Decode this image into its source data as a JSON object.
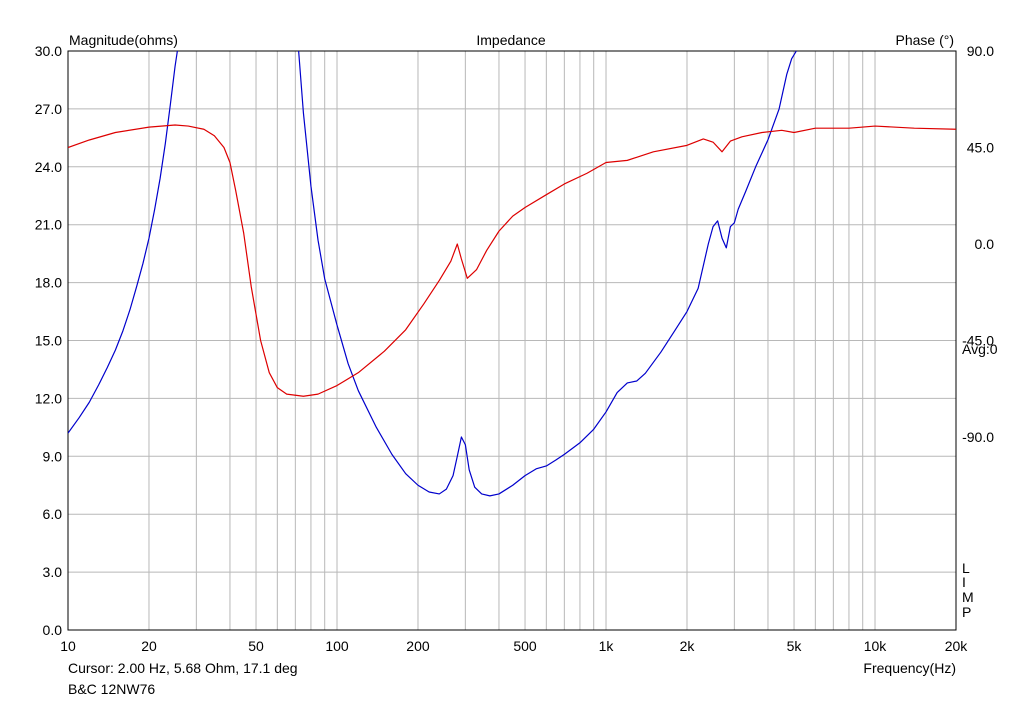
{
  "chart_data": {
    "type": "line",
    "title": "Impedance",
    "left_axis_label": "Magnitude(ohms)",
    "right_axis_label": "Phase (°)",
    "xlabel": "Frequency(Hz)",
    "x_scale": "log",
    "xlim": [
      10,
      20000
    ],
    "ylim": [
      0,
      30
    ],
    "y2lim": [
      -180,
      90
    ],
    "x_ticks": [
      {
        "value": 10,
        "label": "10"
      },
      {
        "value": 20,
        "label": "20"
      },
      {
        "value": 50,
        "label": "50"
      },
      {
        "value": 100,
        "label": "100"
      },
      {
        "value": 200,
        "label": "200"
      },
      {
        "value": 500,
        "label": "500"
      },
      {
        "value": 1000,
        "label": "1k"
      },
      {
        "value": 2000,
        "label": "2k"
      },
      {
        "value": 5000,
        "label": "5k"
      },
      {
        "value": 10000,
        "label": "10k"
      },
      {
        "value": 20000,
        "label": "20k"
      }
    ],
    "y_ticks": [
      {
        "value": 0,
        "label": "0.0"
      },
      {
        "value": 3,
        "label": "3.0"
      },
      {
        "value": 6,
        "label": "6.0"
      },
      {
        "value": 9,
        "label": "9.0"
      },
      {
        "value": 12,
        "label": "12.0"
      },
      {
        "value": 15,
        "label": "15.0"
      },
      {
        "value": 18,
        "label": "18.0"
      },
      {
        "value": 21,
        "label": "21.0"
      },
      {
        "value": 24,
        "label": "24.0"
      },
      {
        "value": 27,
        "label": "27.0"
      },
      {
        "value": 30,
        "label": "30.0"
      }
    ],
    "y2_ticks": [
      {
        "value": 90,
        "label": "90.0"
      },
      {
        "value": 45,
        "label": "45.0"
      },
      {
        "value": 0,
        "label": " 0.0"
      },
      {
        "value": -45,
        "label": "-45.0"
      },
      {
        "value": -90,
        "label": "-90.0"
      }
    ],
    "avg_label": "Avg:0",
    "side_letters": [
      "L",
      "I",
      "M",
      "P"
    ],
    "cursor_text": "Cursor: 2.00 Hz, 5.68 Ohm, 17.1 deg",
    "product": "B&C 12NW76",
    "grid": true,
    "series": [
      {
        "axis": "left",
        "color": "#0000cc",
        "points": [
          [
            10,
            10.2
          ],
          [
            11,
            11.0
          ],
          [
            12,
            11.8
          ],
          [
            13,
            12.7
          ],
          [
            14,
            13.6
          ],
          [
            15,
            14.5
          ],
          [
            16,
            15.5
          ],
          [
            17,
            16.6
          ],
          [
            18,
            17.8
          ],
          [
            19,
            19.0
          ],
          [
            20,
            20.3
          ],
          [
            21,
            21.8
          ],
          [
            22,
            23.4
          ],
          [
            23,
            25.2
          ],
          [
            24,
            27.2
          ],
          [
            25,
            29.2
          ],
          [
            25.5,
            30.0
          ],
          [
            null,
            null
          ],
          [
            72,
            30.0
          ],
          [
            75,
            26.8
          ],
          [
            80,
            23.0
          ],
          [
            85,
            20.2
          ],
          [
            90,
            18.2
          ],
          [
            100,
            15.8
          ],
          [
            110,
            13.8
          ],
          [
            120,
            12.4
          ],
          [
            140,
            10.5
          ],
          [
            160,
            9.1
          ],
          [
            180,
            8.1
          ],
          [
            200,
            7.5
          ],
          [
            220,
            7.15
          ],
          [
            240,
            7.05
          ],
          [
            255,
            7.3
          ],
          [
            270,
            8.0
          ],
          [
            280,
            9.0
          ],
          [
            290,
            10.0
          ],
          [
            300,
            9.6
          ],
          [
            310,
            8.3
          ],
          [
            325,
            7.4
          ],
          [
            345,
            7.05
          ],
          [
            370,
            6.95
          ],
          [
            400,
            7.05
          ],
          [
            450,
            7.5
          ],
          [
            500,
            8.0
          ],
          [
            550,
            8.35
          ],
          [
            600,
            8.5
          ],
          [
            650,
            8.8
          ],
          [
            700,
            9.1
          ],
          [
            800,
            9.7
          ],
          [
            900,
            10.4
          ],
          [
            1000,
            11.3
          ],
          [
            1100,
            12.3
          ],
          [
            1200,
            12.8
          ],
          [
            1300,
            12.9
          ],
          [
            1400,
            13.3
          ],
          [
            1600,
            14.4
          ],
          [
            1800,
            15.5
          ],
          [
            2000,
            16.5
          ],
          [
            2200,
            17.7
          ],
          [
            2400,
            20.0
          ],
          [
            2500,
            20.9
          ],
          [
            2600,
            21.2
          ],
          [
            2700,
            20.3
          ],
          [
            2800,
            19.8
          ],
          [
            2900,
            20.9
          ],
          [
            3000,
            21.1
          ],
          [
            3100,
            21.8
          ],
          [
            3300,
            22.7
          ],
          [
            3600,
            24.0
          ],
          [
            4000,
            25.4
          ],
          [
            4400,
            27.0
          ],
          [
            4700,
            28.8
          ],
          [
            4900,
            29.6
          ],
          [
            5100,
            30.0
          ]
        ]
      },
      {
        "axis": "right",
        "color": "#dd0000",
        "points": [
          [
            10,
            45.0
          ],
          [
            12,
            48.5
          ],
          [
            15,
            52.0
          ],
          [
            20,
            54.5
          ],
          [
            25,
            55.5
          ],
          [
            28,
            55.0
          ],
          [
            32,
            53.5
          ],
          [
            35,
            50.5
          ],
          [
            38,
            45.0
          ],
          [
            40,
            38.0
          ],
          [
            42,
            25.0
          ],
          [
            45,
            5.0
          ],
          [
            48,
            -20.0
          ],
          [
            52,
            -45.0
          ],
          [
            56,
            -60.0
          ],
          [
            60,
            -67.0
          ],
          [
            65,
            -70.0
          ],
          [
            75,
            -71.0
          ],
          [
            85,
            -70.0
          ],
          [
            100,
            -66.0
          ],
          [
            120,
            -60.0
          ],
          [
            150,
            -50.0
          ],
          [
            180,
            -40.0
          ],
          [
            210,
            -28.0
          ],
          [
            240,
            -17.0
          ],
          [
            265,
            -8.0
          ],
          [
            280,
            0.0
          ],
          [
            290,
            -7.0
          ],
          [
            305,
            -16.0
          ],
          [
            330,
            -12.0
          ],
          [
            360,
            -3.0
          ],
          [
            400,
            6.0
          ],
          [
            450,
            13.0
          ],
          [
            500,
            17.0
          ],
          [
            600,
            23.0
          ],
          [
            700,
            28.0
          ],
          [
            850,
            33.0
          ],
          [
            1000,
            38.0
          ],
          [
            1200,
            39.0
          ],
          [
            1500,
            43.0
          ],
          [
            2000,
            46.0
          ],
          [
            2300,
            49.0
          ],
          [
            2500,
            47.5
          ],
          [
            2700,
            43.0
          ],
          [
            2900,
            48.0
          ],
          [
            3200,
            50.0
          ],
          [
            3800,
            52.0
          ],
          [
            4500,
            53.0
          ],
          [
            5000,
            52.0
          ],
          [
            6000,
            54.0
          ],
          [
            8000,
            54.0
          ],
          [
            10000,
            55.0
          ],
          [
            14000,
            54.0
          ],
          [
            20000,
            53.5
          ]
        ]
      }
    ]
  }
}
